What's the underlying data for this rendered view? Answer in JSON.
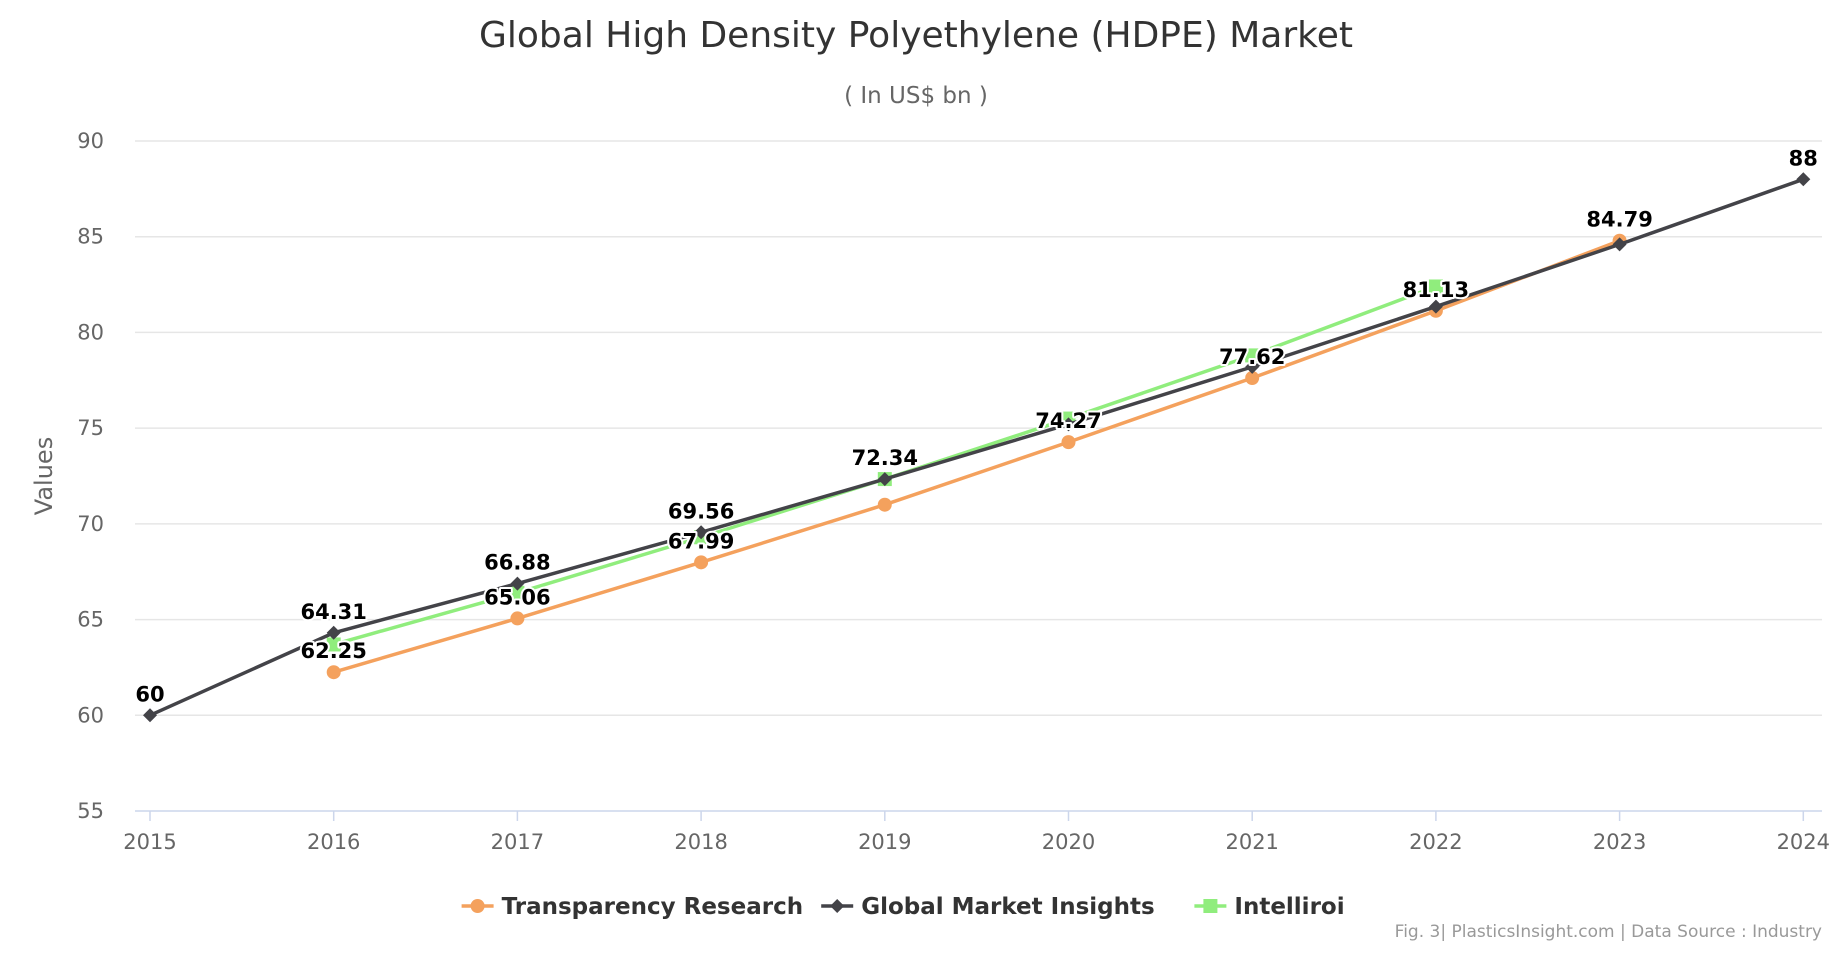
{
  "chart_data": {
    "type": "line",
    "title": "Global High Density Polyethylene (HDPE) Market",
    "subtitle": "( In US$ bn )",
    "ylabel": "Values",
    "xlabel": "",
    "ylim": [
      55,
      90
    ],
    "yticks": [
      55,
      60,
      65,
      70,
      75,
      80,
      85,
      90
    ],
    "categories": [
      "2015",
      "2016",
      "2017",
      "2018",
      "2019",
      "2020",
      "2021",
      "2022",
      "2023",
      "2024"
    ],
    "grid": true,
    "legend_position": "bottom",
    "series": [
      {
        "name": "Transparency Research",
        "color": "#f4a15d",
        "marker": "circle",
        "values": [
          null,
          62.25,
          65.06,
          67.99,
          71.0,
          74.27,
          77.62,
          81.13,
          84.79,
          null
        ],
        "labels": [
          null,
          "62.25",
          "65.06",
          "67.99",
          null,
          "74.27",
          "77.62",
          "81.13",
          "84.79",
          null
        ]
      },
      {
        "name": "Global Market Insights",
        "color": "#434348",
        "marker": "diamond",
        "values": [
          60,
          64.31,
          66.88,
          69.56,
          72.34,
          75.2,
          78.2,
          81.35,
          84.6,
          88
        ],
        "labels": [
          "60",
          "64.31",
          "66.88",
          "69.56",
          "72.34",
          null,
          null,
          null,
          null,
          "88"
        ]
      },
      {
        "name": "Intelliroi",
        "color": "#90ed7d",
        "marker": "square",
        "values": [
          null,
          63.7,
          66.4,
          69.3,
          72.34,
          75.5,
          78.8,
          82.4,
          null,
          null
        ],
        "labels": [
          null,
          null,
          null,
          null,
          null,
          null,
          null,
          null,
          null,
          null
        ]
      }
    ]
  },
  "credits": "Fig. 3| PlasticsInsight.com | Data Source : Industry"
}
